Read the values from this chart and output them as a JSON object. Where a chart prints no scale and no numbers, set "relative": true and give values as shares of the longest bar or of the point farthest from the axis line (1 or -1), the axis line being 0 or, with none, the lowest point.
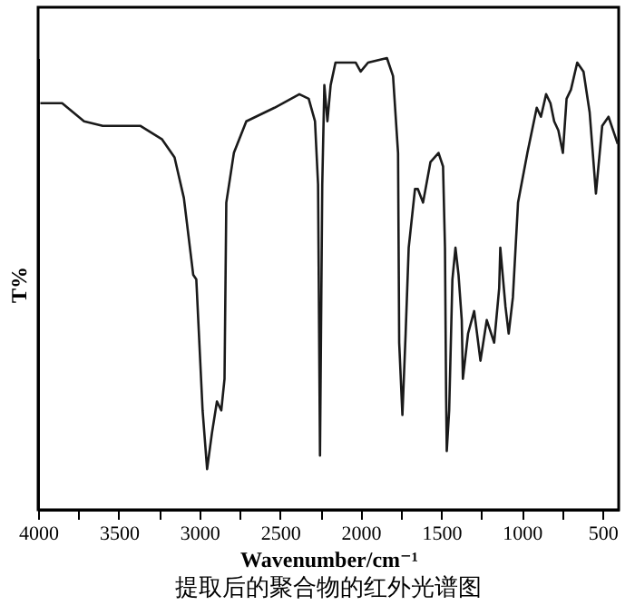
{
  "chart_data": {
    "type": "line",
    "title": "提取后的聚合物的红外光谱图",
    "xlabel": "Wavenumber/cm⁻¹",
    "ylabel": "T%",
    "relative": true,
    "color": "#1a1a1a",
    "xlim": [
      4000,
      400
    ],
    "xticks": [
      4000,
      {
        "value": 3750,
        "label": null
      },
      3500,
      {
        "value": 3250,
        "label": null
      },
      3000,
      {
        "value": 2750,
        "label": null
      },
      2500,
      {
        "value": 2250,
        "label": null
      },
      2000,
      {
        "value": 1750,
        "label": null
      },
      1500,
      {
        "value": 1250,
        "label": null
      },
      1000,
      {
        "value": 750,
        "label": null
      },
      500
    ],
    "x": [
      3986,
      3851,
      3715,
      3599,
      3367,
      3231,
      3154,
      3096,
      3038,
      3019,
      2980,
      2952,
      2922,
      2891,
      2864,
      2844,
      2833,
      2786,
      2709,
      2534,
      2380,
      2322,
      2283,
      2264,
      2252,
      2238,
      2225,
      2206,
      2186,
      2156,
      2031,
      2000,
      1954,
      1837,
      1799,
      1768,
      1761,
      1741,
      1721,
      1702,
      1663,
      1645,
      1613,
      1567,
      1517,
      1489,
      1477,
      1470,
      1466,
      1451,
      1431,
      1412,
      1393,
      1373,
      1366,
      1334,
      1296,
      1257,
      1218,
      1172,
      1141,
      1134,
      1102,
      1082,
      1056,
      1024,
      966,
      908,
      882,
      850,
      823,
      800,
      774,
      746,
      723,
      696,
      657,
      618,
      580,
      541,
      502,
      463,
      425,
      406
    ],
    "values": [
      0.9,
      0.9,
      0.86,
      0.85,
      0.85,
      0.82,
      0.78,
      0.69,
      0.52,
      0.51,
      0.22,
      0.09,
      0.17,
      0.24,
      0.22,
      0.29,
      0.68,
      0.79,
      0.86,
      0.89,
      0.92,
      0.91,
      0.86,
      0.72,
      0.12,
      0.72,
      0.94,
      0.86,
      0.94,
      0.99,
      0.99,
      0.97,
      0.99,
      1.0,
      0.96,
      0.79,
      0.37,
      0.21,
      0.39,
      0.58,
      0.71,
      0.71,
      0.68,
      0.77,
      0.79,
      0.76,
      0.58,
      0.25,
      0.13,
      0.22,
      0.51,
      0.58,
      0.52,
      0.42,
      0.29,
      0.39,
      0.44,
      0.33,
      0.42,
      0.37,
      0.49,
      0.58,
      0.45,
      0.39,
      0.47,
      0.68,
      0.79,
      0.89,
      0.87,
      0.92,
      0.9,
      0.86,
      0.84,
      0.79,
      0.91,
      0.93,
      0.99,
      0.97,
      0.88,
      0.7,
      0.85,
      0.87,
      0.83,
      0.81
    ]
  }
}
